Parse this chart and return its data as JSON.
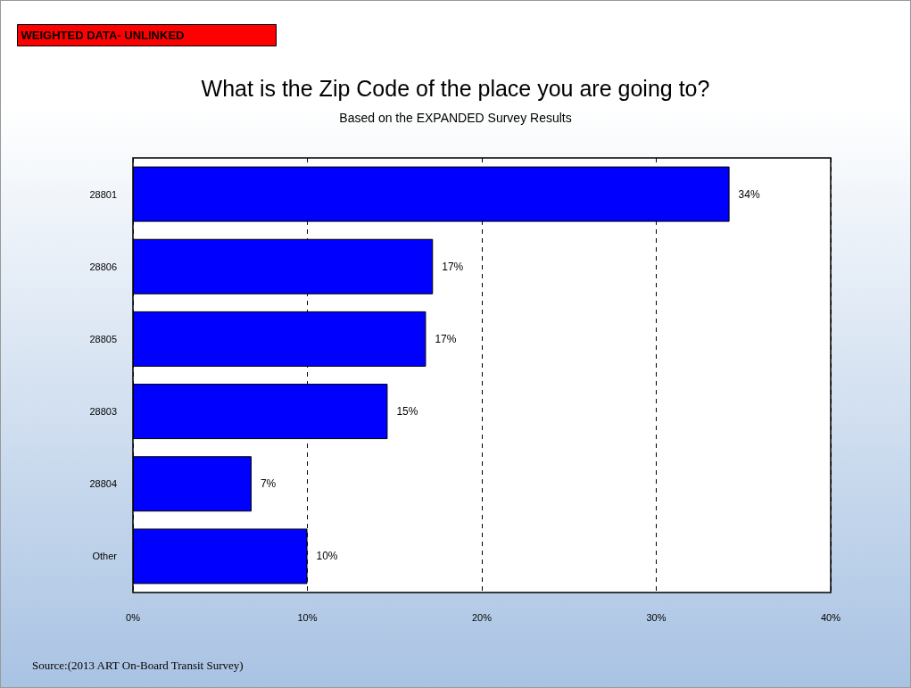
{
  "chart_data": {
    "type": "bar",
    "orientation": "horizontal",
    "title": "What is the Zip Code of the place you are going to?",
    "subtitle": "Based on the EXPANDED Survey Results",
    "categories": [
      "28801",
      "28806",
      "28805",
      "28803",
      "28804",
      "Other"
    ],
    "values": [
      34.2,
      17.2,
      16.8,
      14.6,
      6.8,
      10.0
    ],
    "value_labels": [
      "34%",
      "17%",
      "17%",
      "15%",
      "7%",
      "10%"
    ],
    "color": "#0000ff",
    "xlim": [
      0,
      40
    ],
    "xticks": [
      {
        "value": 0,
        "label": "0%"
      },
      {
        "value": 10,
        "label": "10%"
      },
      {
        "value": 20,
        "label": "20%"
      },
      {
        "value": 30,
        "label": "30%"
      },
      {
        "value": 40,
        "label": "40%"
      }
    ],
    "grid": "x",
    "annotations": [
      "WEIGHTED DATA- UNLINKED",
      "Source:(2013 ART On-Board Transit Survey)"
    ]
  }
}
